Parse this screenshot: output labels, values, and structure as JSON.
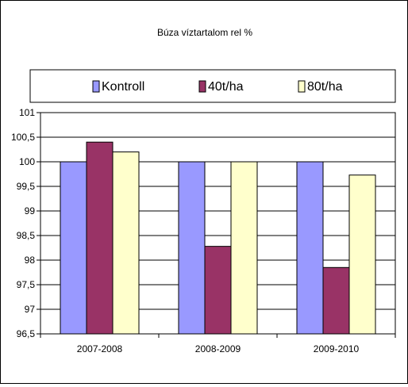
{
  "chart_data": {
    "type": "bar",
    "title": "Búza víztartalom rel %",
    "categories": [
      "2007-2008",
      "2008-2009",
      "2009-2010"
    ],
    "series": [
      {
        "name": "Kontroll",
        "color": "#9999ff",
        "values": [
          100.0,
          100.0,
          100.0
        ]
      },
      {
        "name": "40t/ha",
        "color": "#993366",
        "values": [
          100.4,
          98.28,
          97.85
        ]
      },
      {
        "name": "80t/ha",
        "color": "#ffffcc",
        "values": [
          100.2,
          100.0,
          99.73
        ]
      }
    ],
    "ylim": [
      96.5,
      101
    ],
    "yticks": [
      "96,5",
      "97",
      "97,5",
      "98",
      "98,5",
      "99",
      "99,5",
      "100",
      "100,5",
      "101"
    ],
    "grid": true,
    "legend_position": "top"
  }
}
